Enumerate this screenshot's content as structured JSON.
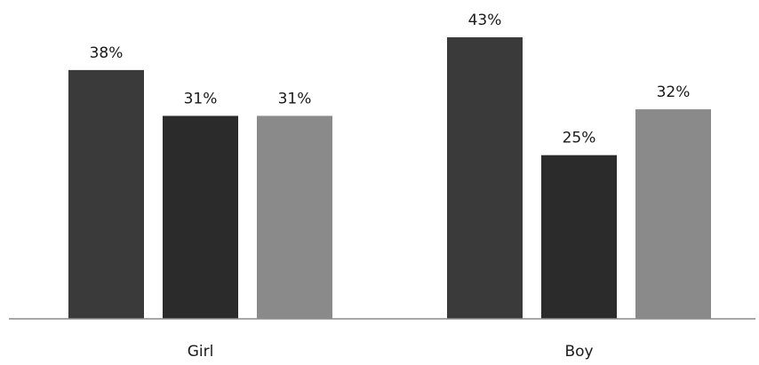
{
  "chart_data": {
    "type": "bar",
    "categories": [
      "Girl",
      "Boy"
    ],
    "series": [
      {
        "values": [
          38,
          43
        ],
        "labels": [
          "38%",
          "43%"
        ],
        "color": "#3a3a3a"
      },
      {
        "values": [
          31,
          25
        ],
        "labels": [
          "31%",
          "25%"
        ],
        "color": "#2b2b2b"
      },
      {
        "values": [
          31,
          32
        ],
        "labels": [
          "31%",
          "32%"
        ],
        "color": "#8a8a8a"
      }
    ],
    "value_unit": "%",
    "ylim": [
      0,
      43
    ],
    "grid": false,
    "legend": "none",
    "title": "",
    "xlabel": "",
    "ylabel": ""
  }
}
